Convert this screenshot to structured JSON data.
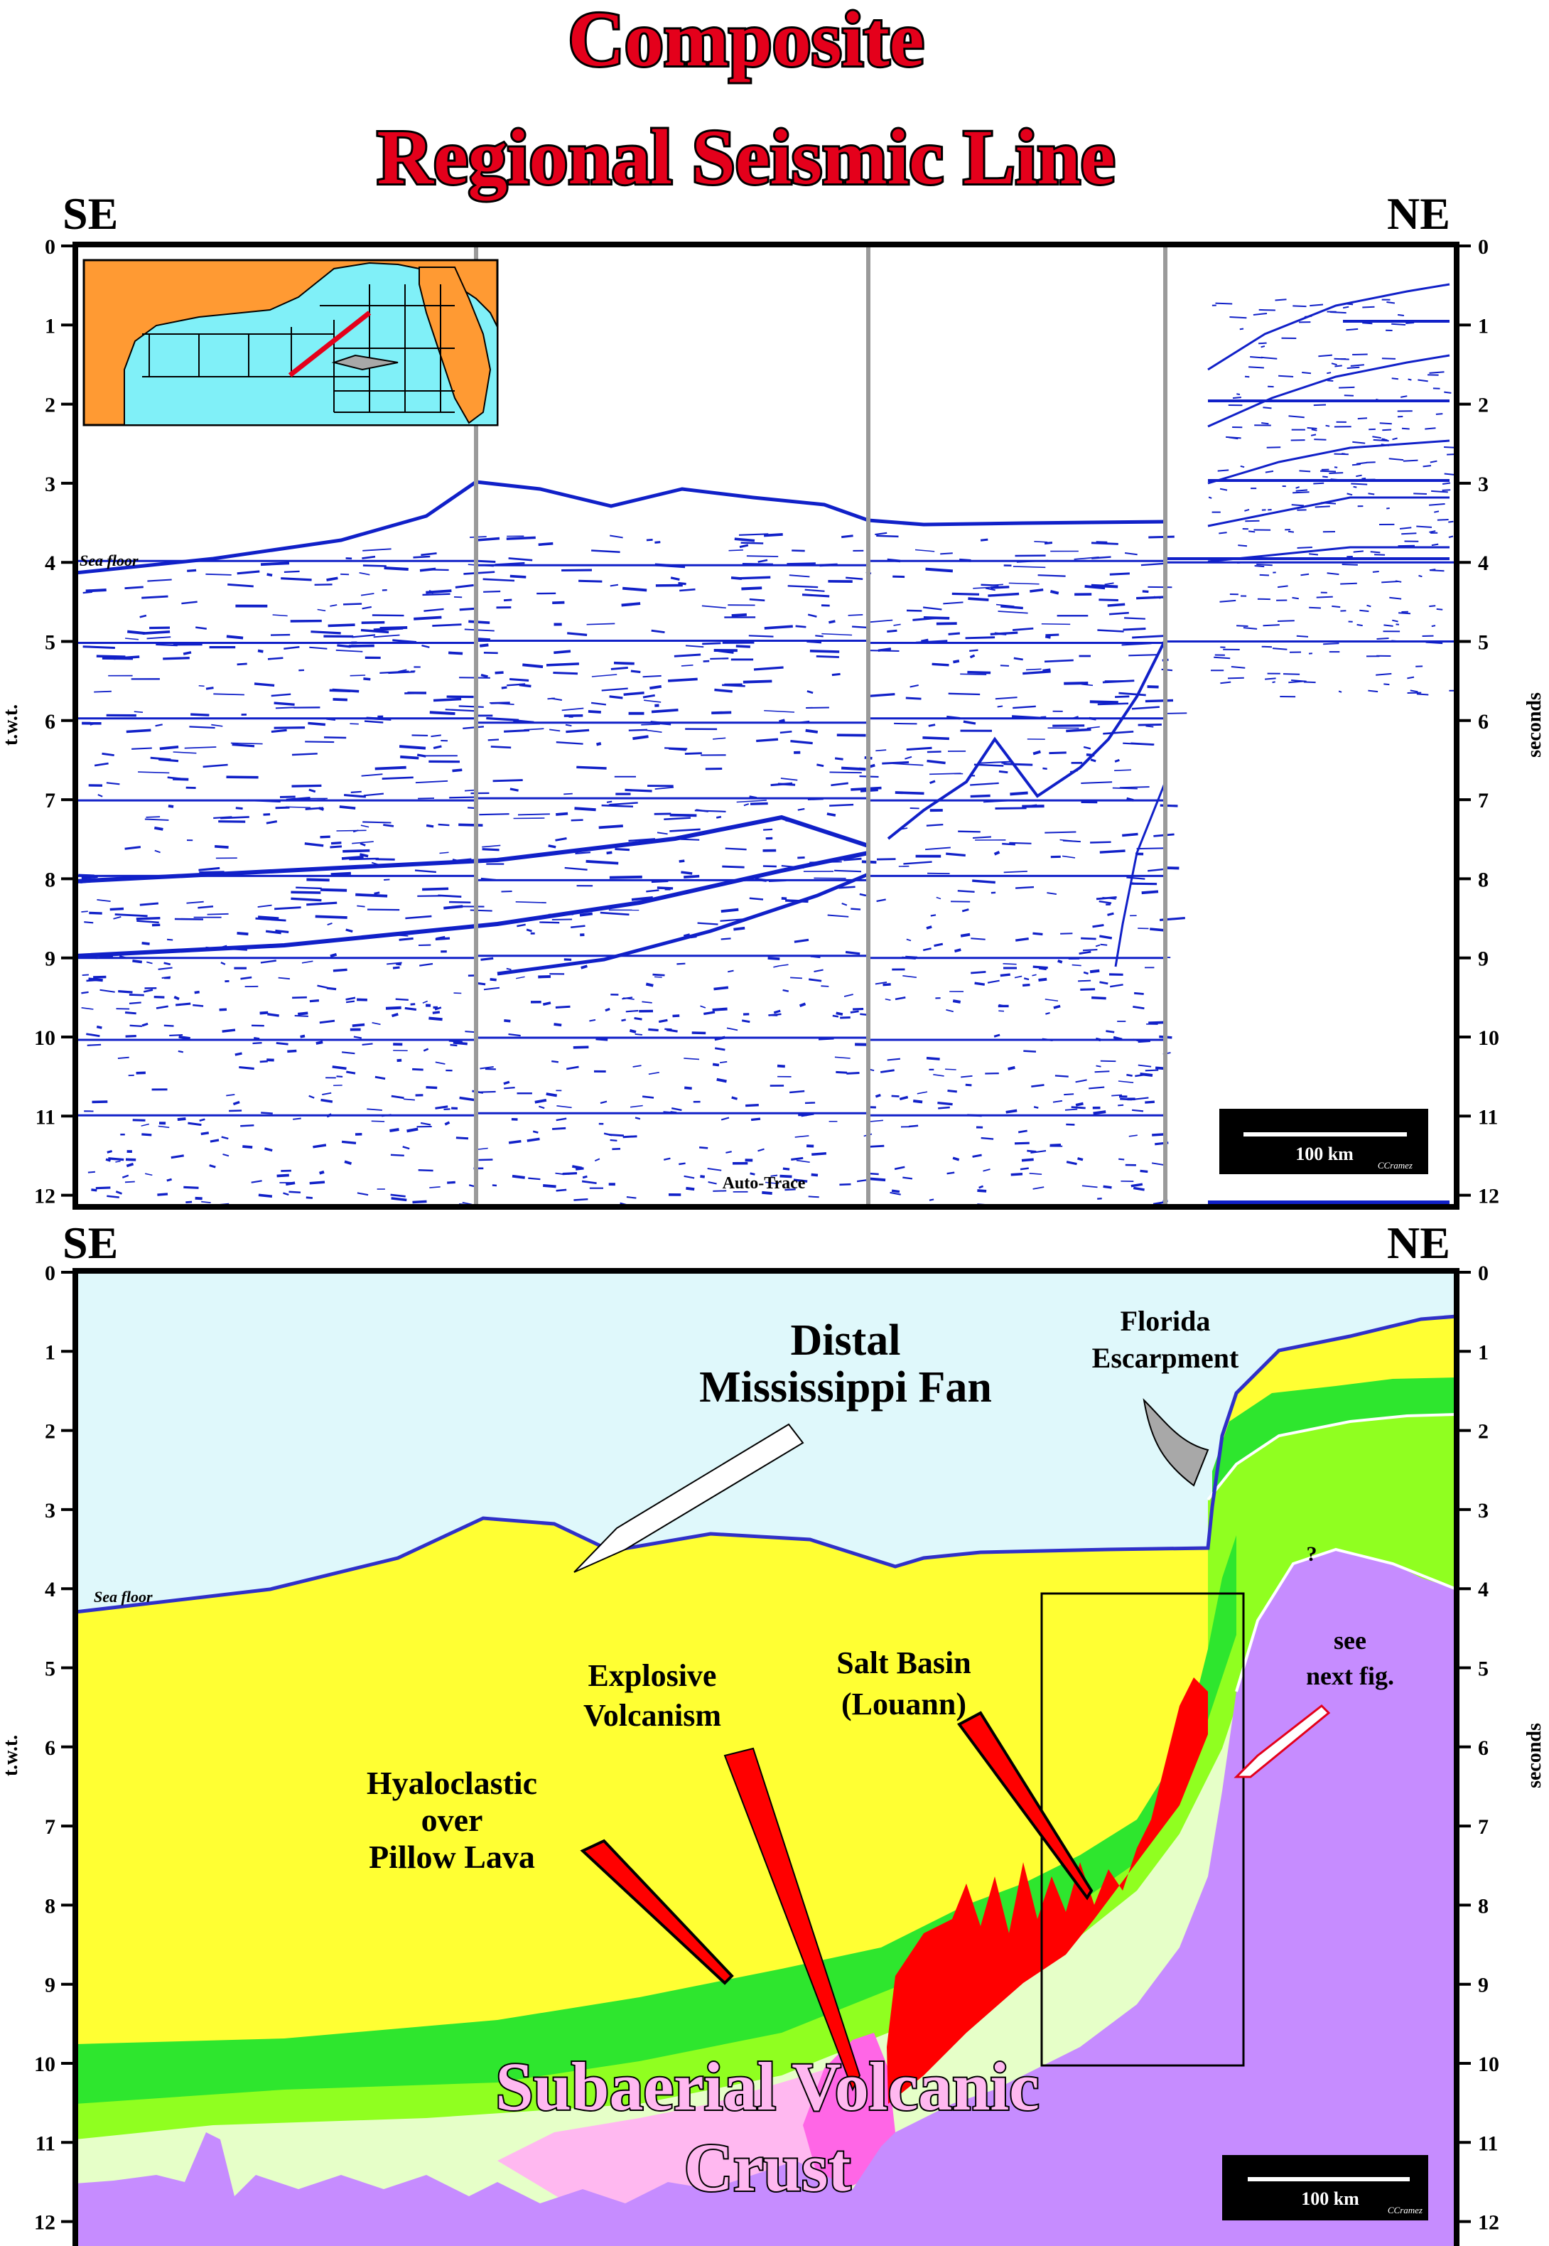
{
  "title": {
    "line1": "Composite",
    "line2": "Regional Seismic Line"
  },
  "colors": {
    "title_fill": "#e4001b",
    "seismic_blue": "#1020c8",
    "water": "#dff8fb",
    "yellow": "#ffff33",
    "green": "#2ee62e",
    "lime": "#90ff20",
    "pale_green": "#e6ffc8",
    "pink": "#ffb8f0",
    "magenta": "#ff66e6",
    "salt_red": "#ff0000",
    "purple": "#c68cff",
    "map_land": "#ff9a33",
    "map_sea": "#80f0f8"
  },
  "top_panel": {
    "left_dir": "SE",
    "right_dir": "NE",
    "left_axis_label": "t.w.t.",
    "right_axis_label": "seconds",
    "ticks": [
      "0",
      "1",
      "2",
      "3",
      "4",
      "5",
      "6",
      "7",
      "8",
      "9",
      "10",
      "11",
      "12"
    ],
    "sea_floor_label": "Sea floor",
    "auto_trace_label": "Auto-Trace",
    "scale_label": "100 km",
    "credit": "CCramez"
  },
  "bottom_panel": {
    "left_dir": "SE",
    "right_dir": "NE",
    "left_axis_label": "t.w.t.",
    "right_axis_label": "seconds",
    "ticks": [
      "0",
      "1",
      "2",
      "3",
      "4",
      "5",
      "6",
      "7",
      "8",
      "9",
      "10",
      "11",
      "12"
    ],
    "sea_floor_label": "Sea floor",
    "scale_label": "100 km",
    "credit": "CCramez",
    "annotations": {
      "distal_fan_1": "Distal",
      "distal_fan_2": "Mississippi Fan",
      "florida_1": "Florida",
      "florida_2": "Escarpment",
      "explosive_1": "Explosive",
      "explosive_2": "Volcanism",
      "salt_1": "Salt Basin",
      "salt_2": "(Louann)",
      "hyalo_1": "Hyaloclastic",
      "hyalo_2": "over",
      "hyalo_3": "Pillow Lava",
      "see_1": "see",
      "see_2": "next fig.",
      "question": "?",
      "crust_1": "Subaerial Volcanic",
      "crust_2": "Crust"
    }
  }
}
